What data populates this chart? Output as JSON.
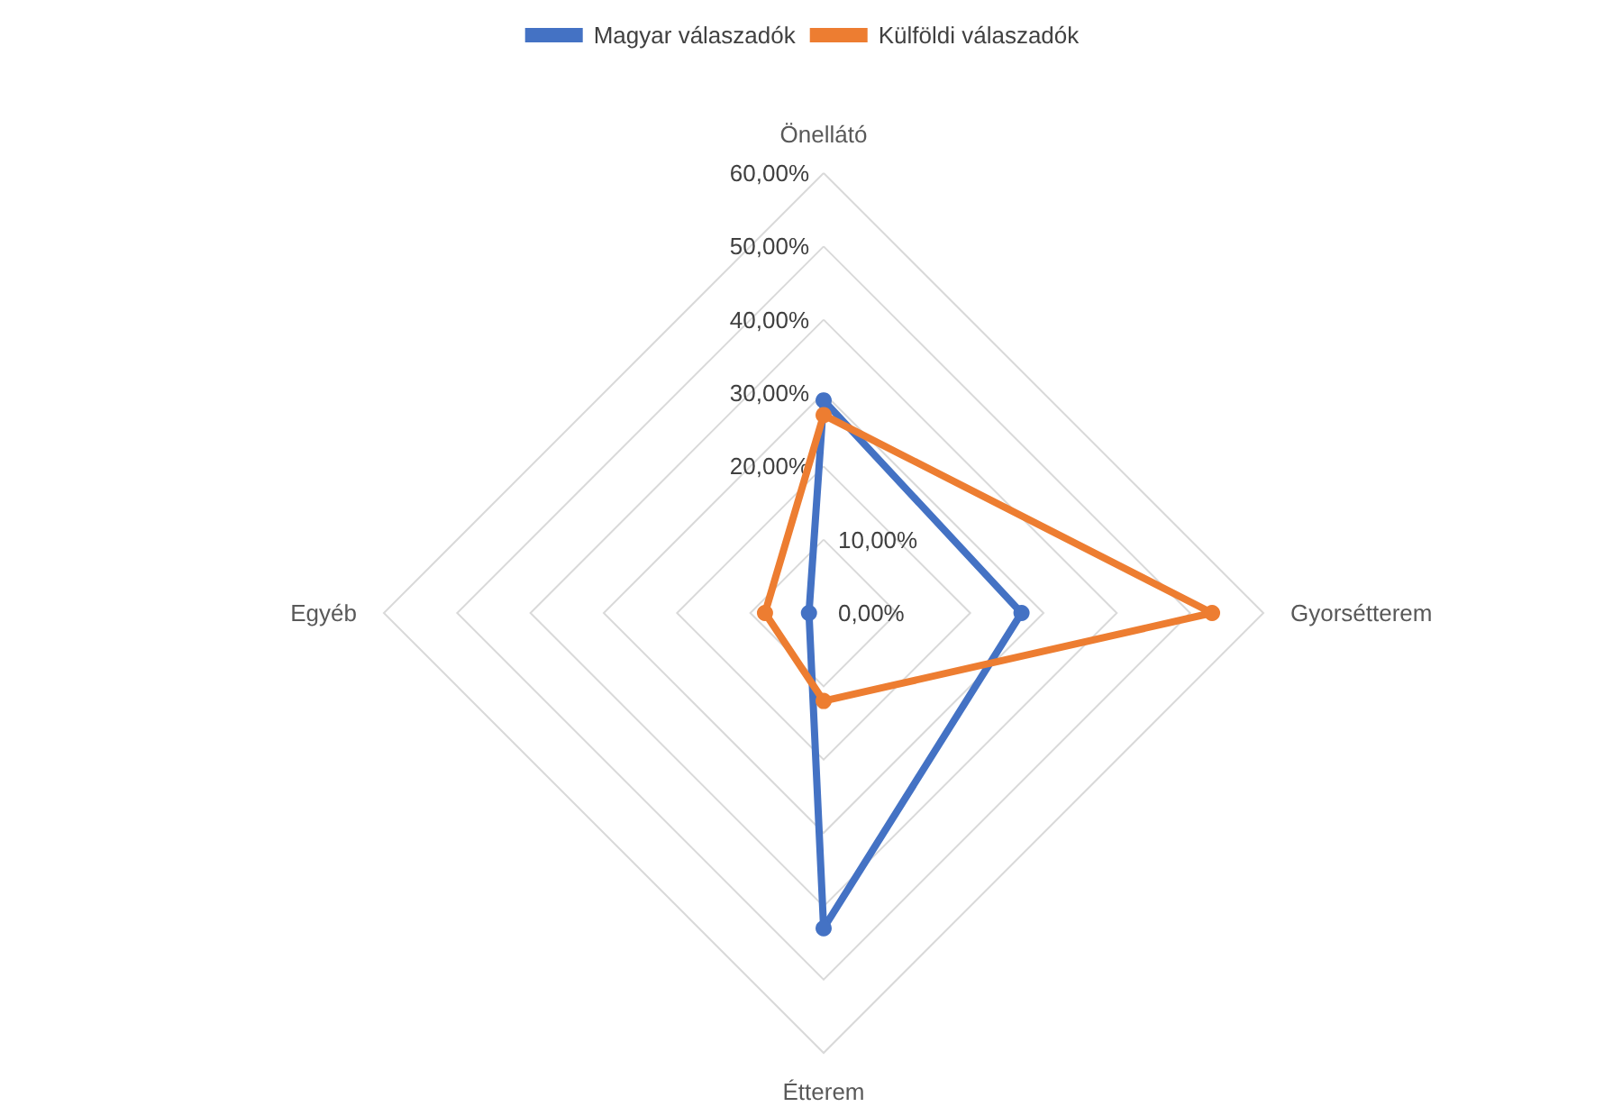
{
  "chart_data": {
    "type": "radar",
    "categories": [
      "Önellátó",
      "Gyorsétterem",
      "Étterem",
      "Egyéb"
    ],
    "series": [
      {
        "name": "Magyar válaszadók",
        "color": "#4472c4",
        "values": [
          29,
          27,
          43,
          2
        ]
      },
      {
        "name": "Külföldi válaszadók",
        "color": "#ed7d31",
        "values": [
          27,
          53,
          12,
          8
        ]
      }
    ],
    "ylim": [
      0,
      60
    ],
    "yticks": [
      {
        "value": 0,
        "label": "0,00%"
      },
      {
        "value": 10,
        "label": "10,00%"
      },
      {
        "value": 20,
        "label": "20,00%"
      },
      {
        "value": 30,
        "label": "30,00%"
      },
      {
        "value": 40,
        "label": "40,00%"
      },
      {
        "value": 50,
        "label": "50,00%"
      },
      {
        "value": 60,
        "label": "60,00%"
      }
    ],
    "grid": true,
    "legend": "top",
    "marker": "circle",
    "line_style": "solid"
  }
}
